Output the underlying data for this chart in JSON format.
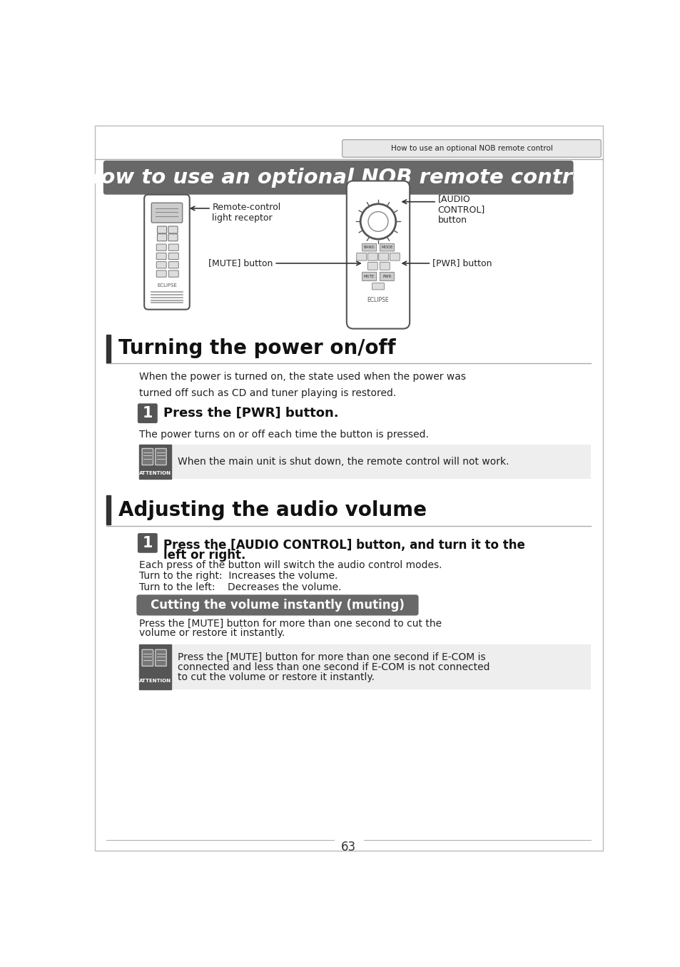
{
  "page_bg": "#ffffff",
  "tab_text": "How to use an optional NOB remote control",
  "tab_bg": "#e8e8e8",
  "main_title": "How to use an optional NOB remote control",
  "main_title_bg": "#686868",
  "main_title_color": "#ffffff",
  "section1_title": "Turning the power on/off",
  "section_bar_color": "#333333",
  "section_line_color": "#aaaaaa",
  "section1_intro": "When the power is turned on, the state used when the power was\nturned off such as CD and tuner playing is restored.",
  "step1_label": "1",
  "step_bg": "#555555",
  "step_color": "#ffffff",
  "step1_power_text": "Press the [PWR] button.",
  "step1_power_subtext": "The power turns on or off each time the button is pressed.",
  "attention_bg": "#eeeeee",
  "attention_icon_bg": "#555555",
  "attention1_text": "When the main unit is shut down, the remote control will not work.",
  "section2_title": "Adjusting the audio volume",
  "step2_text_line1": "Press the [AUDIO CONTROL] button, and turn it to the",
  "step2_text_line2": "left or right.",
  "step2_sub1": "Each press of the button will switch the audio control modes.",
  "step2_sub2": "Turn to the right:  Increases the volume.",
  "step2_sub3": "Turn to the left:    Decreases the volume.",
  "muting_title": "Cutting the volume instantly (muting)",
  "muting_bg": "#686868",
  "muting_color": "#ffffff",
  "muting_text_line1": "Press the [MUTE] button for more than one second to cut the",
  "muting_text_line2": "volume or restore it instantly.",
  "attention2_line1": "Press the [MUTE] button for more than one second if E-COM is",
  "attention2_line2": "connected and less than one second if E-COM is not connected",
  "attention2_line3": "to cut the volume or restore it instantly.",
  "page_number": "63",
  "remote_label_receptor": "Remote-control\nlight receptor",
  "remote_label_mute": "[MUTE] button",
  "remote_label_pwr": "[PWR] button",
  "remote_label_audio": "[AUDIO\nCONTROL]\nbutton"
}
